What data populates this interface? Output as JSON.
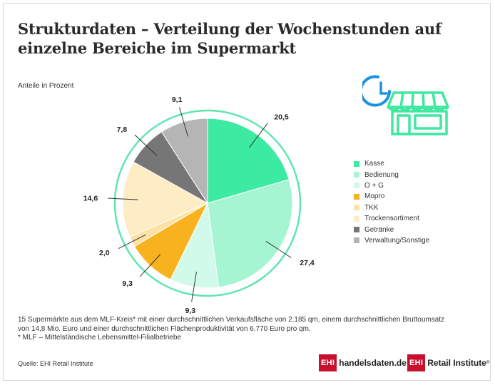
{
  "title_line1": "Strukturdaten – Verteilung der Wochenstunden auf",
  "title_line2": "einzelne Bereiche im Supermarkt",
  "subtitle": "Anteile in Prozent",
  "icons": [
    "clock-icon",
    "store-icon"
  ],
  "colors": {
    "accent": "#3ee8a0",
    "ring": "#5fe6b0"
  },
  "chart_data": {
    "type": "pie",
    "title": "Strukturdaten – Verteilung der Wochenstunden auf einzelne Bereiche im Supermarkt",
    "unit": "Anteile in Prozent",
    "legend_placement": "right",
    "slices": [
      {
        "name": "Kasse",
        "value": 20.5,
        "label": "20,5",
        "color": "#3ceaa2"
      },
      {
        "name": "Bedienung",
        "value": 27.4,
        "label": "27,4",
        "color": "#a6f5d2"
      },
      {
        "name": "O + G",
        "value": 9.3,
        "label": "9,3",
        "color": "#d2faea"
      },
      {
        "name": "Mopro",
        "value": 9.3,
        "label": "9,3",
        "color": "#f7b21d"
      },
      {
        "name": "TKK",
        "value": 2.0,
        "label": "2,0",
        "color": "#fde2a6"
      },
      {
        "name": "Trockensortiment",
        "value": 14.6,
        "label": "14,6",
        "color": "#feecc4"
      },
      {
        "name": "Getränke",
        "value": 7.8,
        "label": "7,8",
        "color": "#767676"
      },
      {
        "name": "Verwaltung/Sonstige",
        "value": 9.1,
        "label": "9,1",
        "color": "#b5b5b5"
      }
    ]
  },
  "footnote": {
    "line1": "15 Supermärkte aus dem MLF-Kreis* mit einer durchschnittlichen Verkaufsfläche von 2.185 qm, einem durchschnittlichen Bruttoumsatz",
    "line2": "von 14,8 Mio. Euro und einer durchschnittlichen Flächenproduktivität von 6.770 Euro pro qm.",
    "line3": "*   MLF – Mittelständische Lebensmittel-Filialbetriebe"
  },
  "source": "Quelle: EHI Retail Institute",
  "logos": {
    "ehi": "EHI",
    "handelsdaten": "handelsdaten.de",
    "retail_institute": "Retail Institute",
    "registered": "®"
  }
}
